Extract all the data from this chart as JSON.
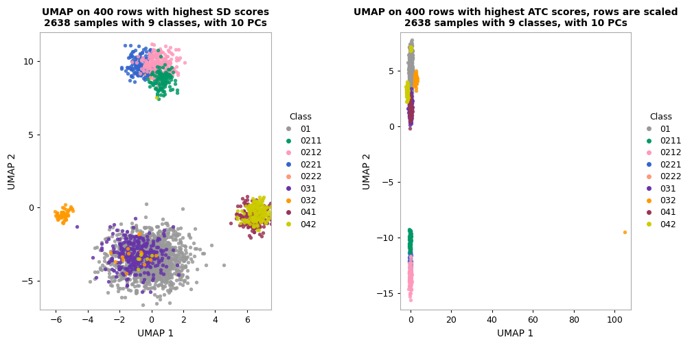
{
  "title1": "UMAP on 400 rows with highest SD scores\n2638 samples with 9 classes, with 10 PCs",
  "title2": "UMAP on 400 rows with highest ATC scores, rows are scaled\n2638 samples with 9 classes, with 10 PCs",
  "xlabel": "UMAP 1",
  "ylabel": "UMAP 2",
  "classes": [
    "01",
    "0211",
    "0212",
    "0221",
    "0222",
    "031",
    "032",
    "041",
    "042"
  ],
  "colors": [
    "#999999",
    "#009966",
    "#FF99BB",
    "#3366CC",
    "#FF9977",
    "#6633AA",
    "#FF9900",
    "#993355",
    "#CCCC00"
  ],
  "legend_title": "Class",
  "plot1_xlim": [
    -7.0,
    7.5
  ],
  "plot1_ylim": [
    -7.0,
    12.0
  ],
  "plot1_xticks": [
    -6,
    -4,
    -2,
    0,
    2,
    4,
    6
  ],
  "plot1_yticks": [
    -5,
    0,
    5,
    10
  ],
  "plot2_xlim": [
    -5.0,
    108.0
  ],
  "plot2_ylim": [
    -16.5,
    8.5
  ],
  "plot2_xticks": [
    0,
    20,
    40,
    60,
    80,
    100
  ],
  "plot2_yticks": [
    -15,
    -10,
    -5,
    0,
    5
  ],
  "point_size": 15,
  "alpha": 0.85,
  "seed": 42
}
